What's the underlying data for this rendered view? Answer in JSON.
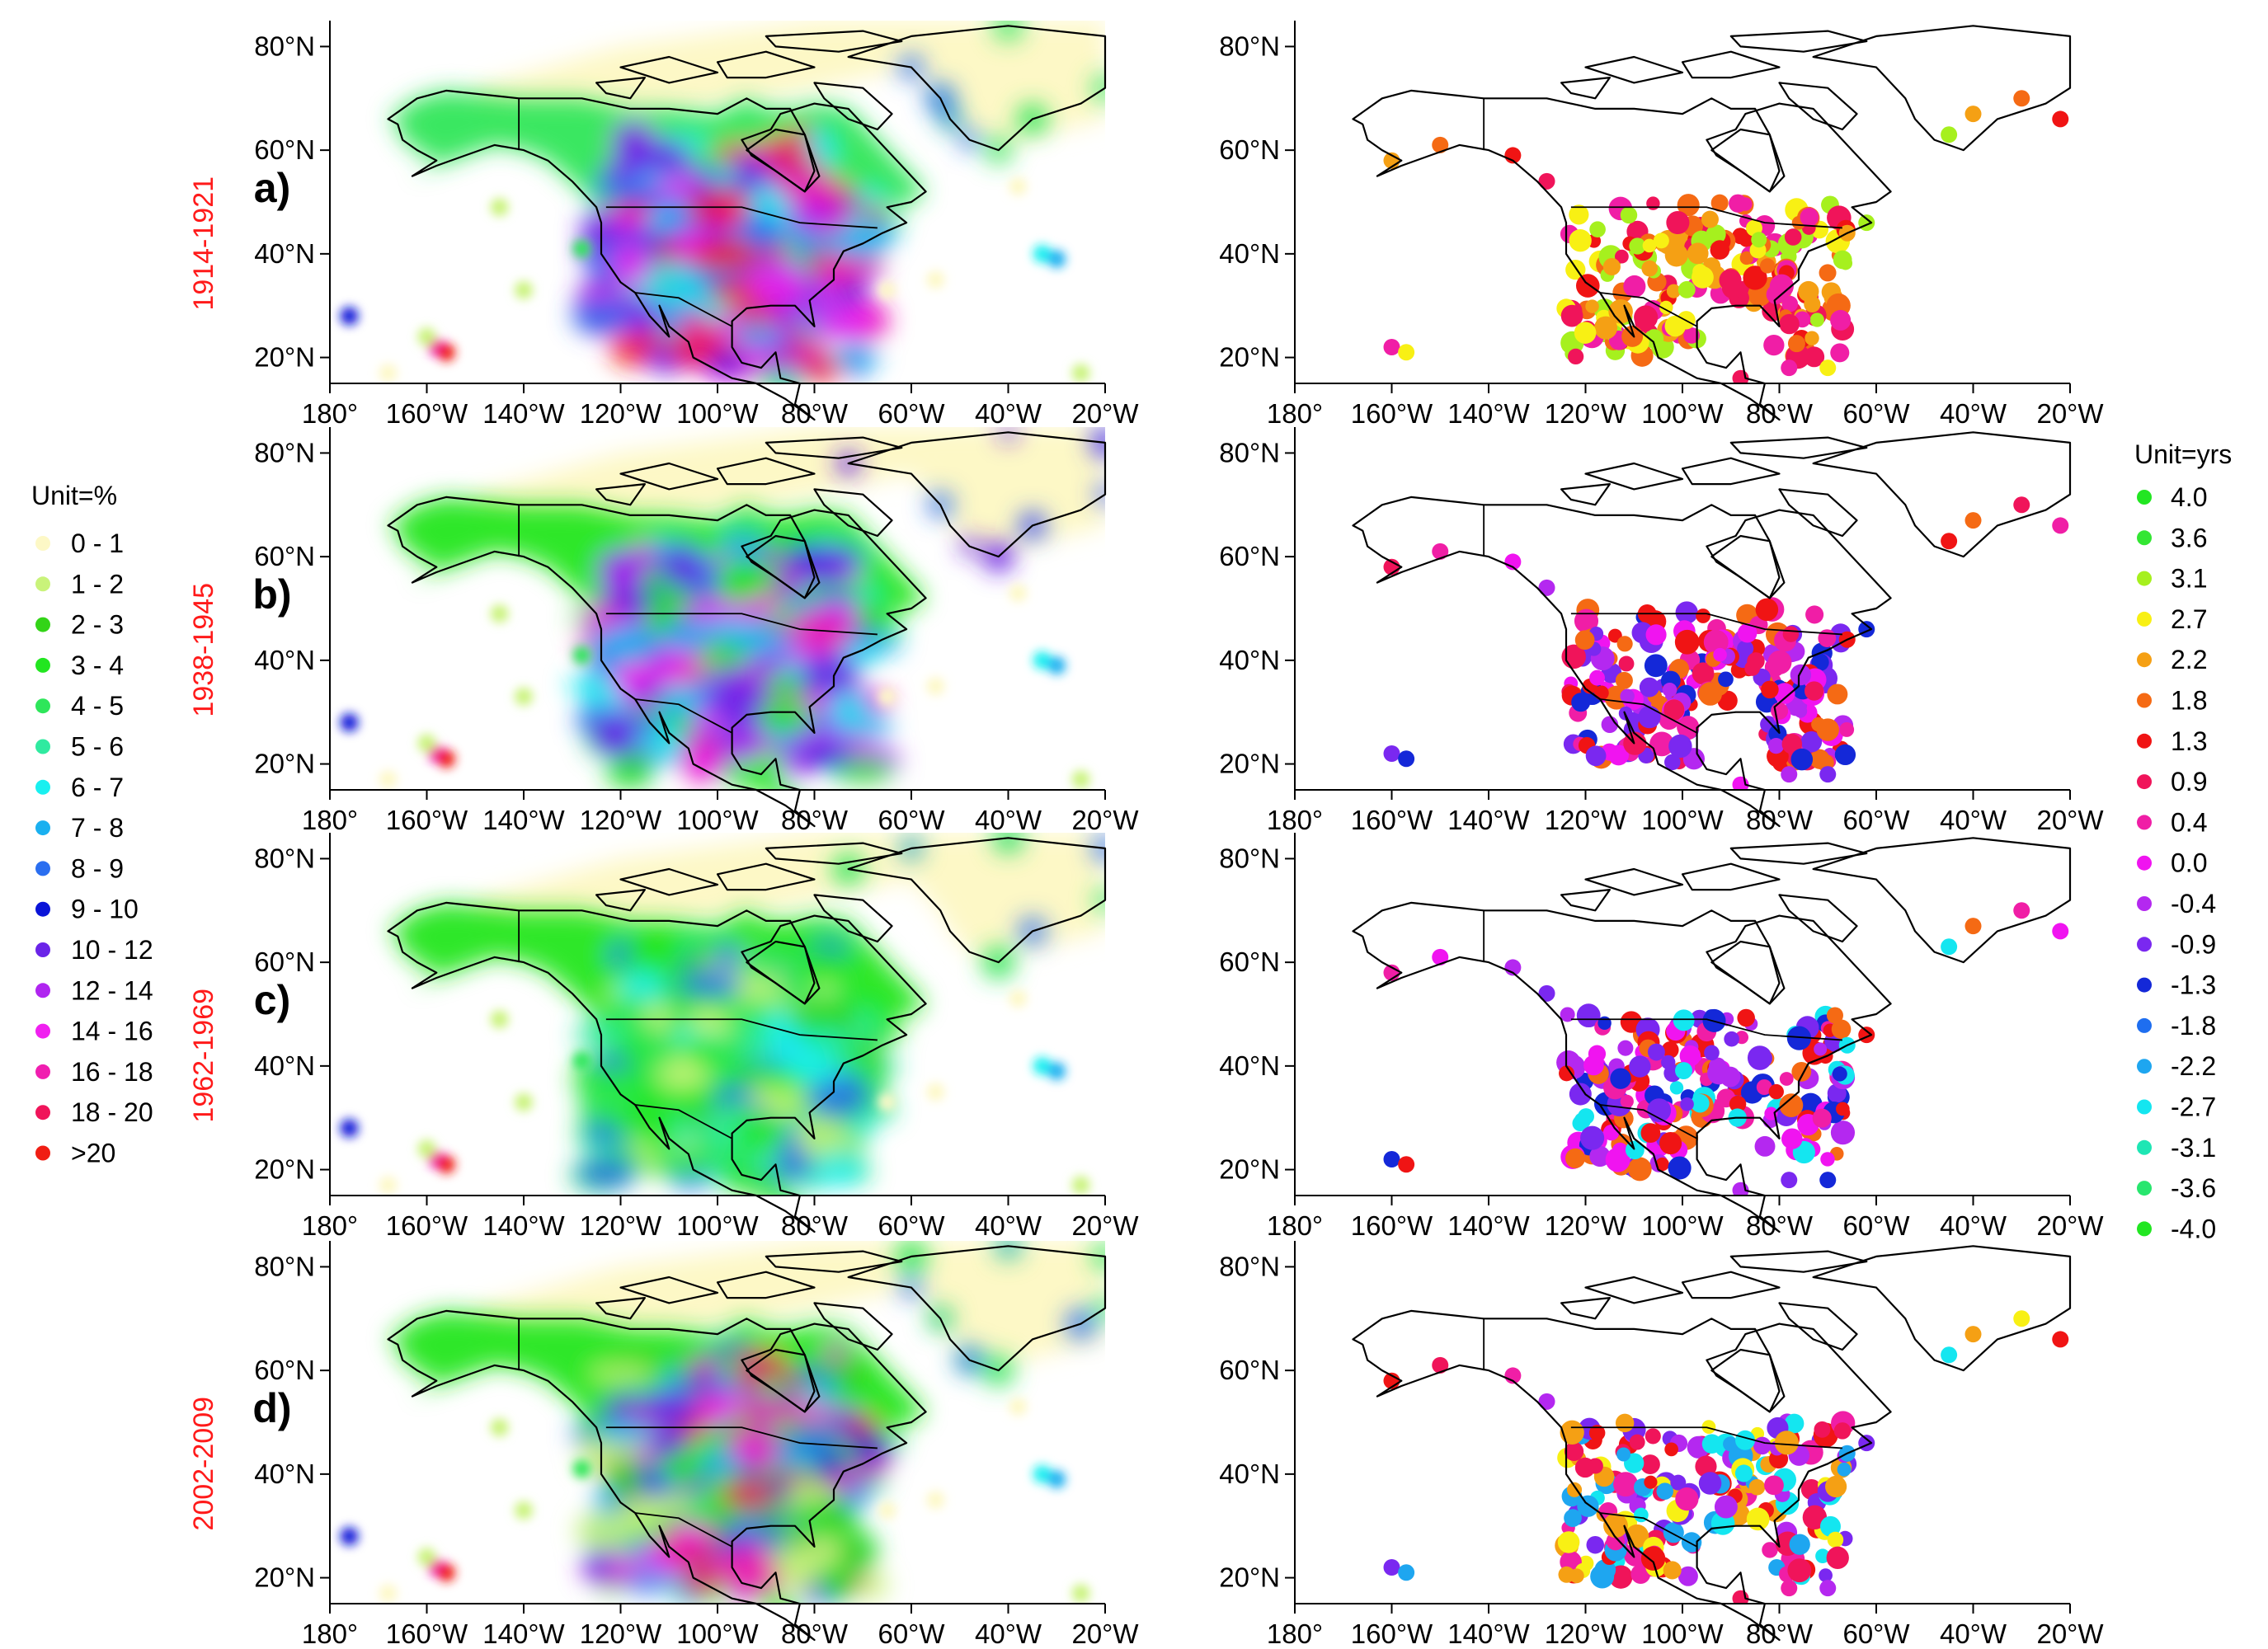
{
  "figure": {
    "lat_ticks": [
      "80°N",
      "60°N",
      "40°N",
      "20°N"
    ],
    "lon_ticks": [
      "180°",
      "160°W",
      "140°W",
      "120°W",
      "100°W",
      "80°W",
      "60°W",
      "40°W",
      "20°W"
    ],
    "lon_values": [
      -180,
      -160,
      -140,
      -120,
      -100,
      -80,
      -60,
      -40,
      -20
    ],
    "lat_values": [
      80,
      60,
      40,
      20
    ],
    "rows": [
      {
        "letter": "a)",
        "period": "1914-1921"
      },
      {
        "letter": "b)",
        "period": "1938-1945"
      },
      {
        "letter": "c)",
        "period": "1962-1969"
      },
      {
        "letter": "d)",
        "period": "2002-2009"
      }
    ]
  },
  "legend_percent": {
    "title": "Unit=%",
    "items": [
      {
        "label": "0 - 1",
        "color": "#fdf8c6"
      },
      {
        "label": "1 - 2",
        "color": "#c9f37a"
      },
      {
        "label": "2 - 3",
        "color": "#33d417"
      },
      {
        "label": "3 - 4",
        "color": "#22e620"
      },
      {
        "label": "4 - 5",
        "color": "#2ee65a"
      },
      {
        "label": "5 - 6",
        "color": "#30eaa0"
      },
      {
        "label": "6 - 7",
        "color": "#19f0f0"
      },
      {
        "label": "7 - 8",
        "color": "#1ab0f0"
      },
      {
        "label": "8 - 9",
        "color": "#2a6ef0"
      },
      {
        "label": "9 - 10",
        "color": "#0a14d8"
      },
      {
        "label": "10 - 12",
        "color": "#6a24e8"
      },
      {
        "label": "12 - 14",
        "color": "#b025f0"
      },
      {
        "label": "14 - 16",
        "color": "#f020f0"
      },
      {
        "label": "16 - 18",
        "color": "#f01eb0"
      },
      {
        "label": "18 - 20",
        "color": "#f0145a"
      },
      {
        "label": ">20",
        "color": "#f01e14"
      }
    ]
  },
  "legend_years": {
    "title": "Unit=yrs",
    "items": [
      {
        "label": "4.0",
        "color": "#22e622"
      },
      {
        "label": "3.6",
        "color": "#33e633"
      },
      {
        "label": "3.1",
        "color": "#a6f01e"
      },
      {
        "label": "2.7",
        "color": "#f8f014"
      },
      {
        "label": "2.2",
        "color": "#f5a014"
      },
      {
        "label": "1.8",
        "color": "#f56a14"
      },
      {
        "label": "1.3",
        "color": "#f01414"
      },
      {
        "label": "0.9",
        "color": "#f0145a"
      },
      {
        "label": "0.4",
        "color": "#f01ea6"
      },
      {
        "label": "0.0",
        "color": "#f014f0"
      },
      {
        "label": "-0.4",
        "color": "#b428f0"
      },
      {
        "label": "-0.9",
        "color": "#7a28f0"
      },
      {
        "label": "-1.3",
        "color": "#1428d8"
      },
      {
        "label": "-1.8",
        "color": "#1e6ef0"
      },
      {
        "label": "-2.2",
        "color": "#1ea6f0"
      },
      {
        "label": "-2.7",
        "color": "#14e6f0"
      },
      {
        "label": "-3.1",
        "color": "#1ee6b4"
      },
      {
        "label": "-3.6",
        "color": "#28e66e"
      },
      {
        "label": "-4.0",
        "color": "#22e622"
      }
    ]
  }
}
